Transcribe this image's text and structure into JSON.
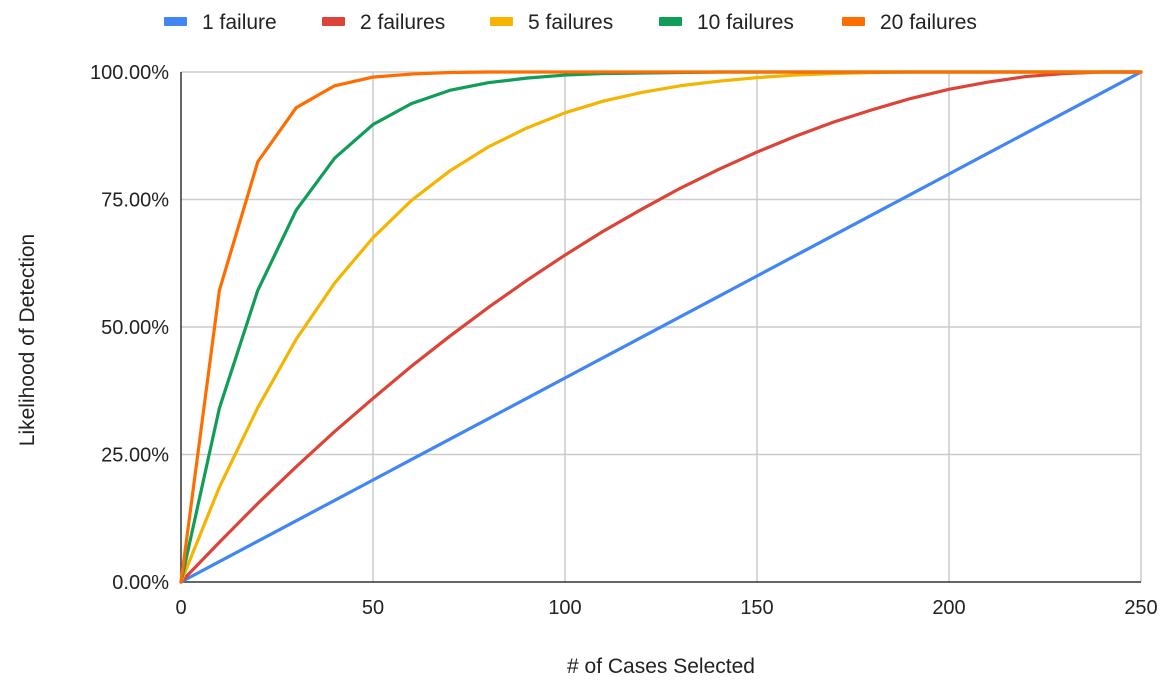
{
  "chart_data": {
    "type": "line",
    "title": "",
    "xlabel": "# of Cases Selected",
    "ylabel": "Likelihood of Detection",
    "xlim": [
      0,
      250
    ],
    "ylim": [
      0,
      100
    ],
    "x_ticks": [
      0,
      50,
      100,
      150,
      200,
      250
    ],
    "y_ticks": [
      0,
      25,
      50,
      75,
      100
    ],
    "x_tick_labels": [
      "0",
      "50",
      "100",
      "150",
      "200",
      "250"
    ],
    "y_tick_labels": [
      "0.00%",
      "25.00%",
      "50.00%",
      "75.00%",
      "100.00%"
    ],
    "grid": true,
    "legend_position": "top",
    "x": [
      0,
      10,
      20,
      30,
      40,
      50,
      60,
      70,
      80,
      90,
      100,
      110,
      120,
      130,
      140,
      150,
      160,
      170,
      180,
      190,
      200,
      210,
      220,
      230,
      240,
      250
    ],
    "series": [
      {
        "name": "1 failure",
        "color": "#4285F4",
        "values": [
          0,
          4,
          8,
          12,
          16,
          20,
          24,
          28,
          32,
          36,
          40,
          44,
          48,
          52,
          56,
          60,
          64,
          68,
          72,
          76,
          80,
          84,
          88,
          92,
          96,
          100
        ]
      },
      {
        "name": "2 failures",
        "color": "#DB4437",
        "values": [
          0,
          7.8,
          15.4,
          22.6,
          29.5,
          36.0,
          42.3,
          48.2,
          53.8,
          59.1,
          64.1,
          68.8,
          73.1,
          77.2,
          80.9,
          84.3,
          87.4,
          90.2,
          92.6,
          94.8,
          96.6,
          98.0,
          99.1,
          99.7,
          100.0,
          100.0
        ]
      },
      {
        "name": "5 failures",
        "color": "#F4B400",
        "values": [
          0,
          18.6,
          34.2,
          47.6,
          58.6,
          67.5,
          74.8,
          80.6,
          85.3,
          89.0,
          92.0,
          94.3,
          96.0,
          97.3,
          98.2,
          98.9,
          99.4,
          99.7,
          99.9,
          100,
          100,
          100,
          100,
          100,
          100,
          100
        ]
      },
      {
        "name": "10 failures",
        "color": "#0F9D58",
        "values": [
          0,
          34.1,
          57.2,
          72.9,
          83.1,
          89.7,
          93.8,
          96.4,
          97.9,
          98.8,
          99.4,
          99.7,
          99.8,
          99.9,
          100,
          100,
          100,
          100,
          100,
          100,
          100,
          100,
          100,
          100,
          100,
          100
        ]
      },
      {
        "name": "20 failures",
        "color": "#FF6D01",
        "values": [
          0,
          57.2,
          82.4,
          93.0,
          97.3,
          99.0,
          99.6,
          99.9,
          100,
          100,
          100,
          100,
          100,
          100,
          100,
          100,
          100,
          100,
          100,
          100,
          100,
          100,
          100,
          100,
          100,
          100
        ]
      }
    ]
  }
}
